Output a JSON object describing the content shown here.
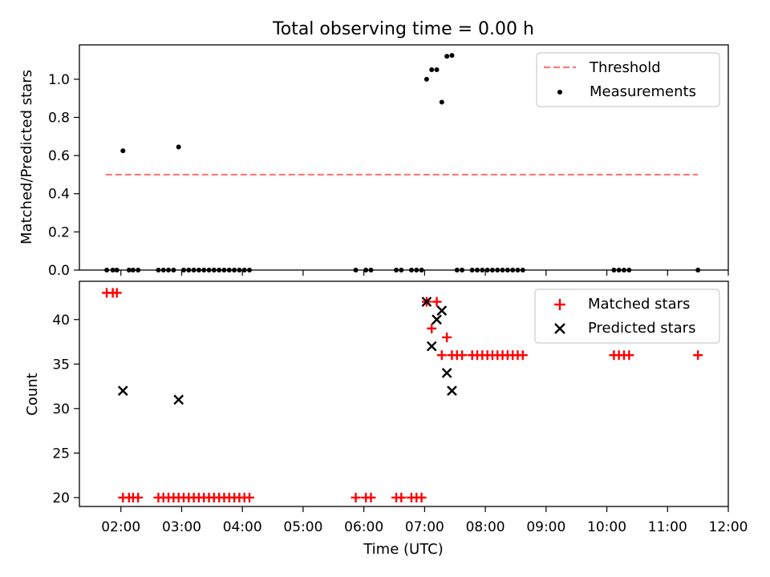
{
  "chart_data": [
    {
      "type": "scatter",
      "title": "Total observing time = 0.00 h",
      "xlabel": "",
      "ylabel": "Matched/Predicted stars",
      "xlim": [
        "01:19",
        "12:00"
      ],
      "ylim": [
        0,
        1.18
      ],
      "yticks": [
        "0.0",
        "0.2",
        "0.4",
        "0.6",
        "0.8",
        "1.0"
      ],
      "legend_position": "top-right",
      "grid": false,
      "threshold": {
        "name": "Threshold",
        "value": 0.5,
        "x_start": "01:45",
        "x_end": "11:30",
        "color": "#ff7777"
      },
      "measurements": {
        "name": "Measurements",
        "color": "#000000",
        "points": [
          {
            "x": "01:46",
            "y": 0.0
          },
          {
            "x": "01:52",
            "y": 0.0
          },
          {
            "x": "01:56",
            "y": 0.0
          },
          {
            "x": "02:02",
            "y": 0.625
          },
          {
            "x": "02:08",
            "y": 0.0
          },
          {
            "x": "02:12",
            "y": 0.0
          },
          {
            "x": "02:17",
            "y": 0.0
          },
          {
            "x": "02:37",
            "y": 0.0
          },
          {
            "x": "02:42",
            "y": 0.0
          },
          {
            "x": "02:47",
            "y": 0.0
          },
          {
            "x": "02:52",
            "y": 0.0
          },
          {
            "x": "02:57",
            "y": 0.645
          },
          {
            "x": "03:02",
            "y": 0.0
          },
          {
            "x": "03:07",
            "y": 0.0
          },
          {
            "x": "03:12",
            "y": 0.0
          },
          {
            "x": "03:17",
            "y": 0.0
          },
          {
            "x": "03:22",
            "y": 0.0
          },
          {
            "x": "03:27",
            "y": 0.0
          },
          {
            "x": "03:32",
            "y": 0.0
          },
          {
            "x": "03:37",
            "y": 0.0
          },
          {
            "x": "03:42",
            "y": 0.0
          },
          {
            "x": "03:47",
            "y": 0.0
          },
          {
            "x": "03:52",
            "y": 0.0
          },
          {
            "x": "03:57",
            "y": 0.0
          },
          {
            "x": "04:02",
            "y": 0.0
          },
          {
            "x": "04:07",
            "y": 0.0
          },
          {
            "x": "05:52",
            "y": 0.0
          },
          {
            "x": "06:02",
            "y": 0.0
          },
          {
            "x": "06:07",
            "y": 0.0
          },
          {
            "x": "06:32",
            "y": 0.0
          },
          {
            "x": "06:37",
            "y": 0.0
          },
          {
            "x": "06:47",
            "y": 0.0
          },
          {
            "x": "06:52",
            "y": 0.0
          },
          {
            "x": "06:57",
            "y": 0.0
          },
          {
            "x": "07:02",
            "y": 1.0
          },
          {
            "x": "07:07",
            "y": 1.05
          },
          {
            "x": "07:12",
            "y": 1.05
          },
          {
            "x": "07:17",
            "y": 0.88
          },
          {
            "x": "07:22",
            "y": 1.12
          },
          {
            "x": "07:27",
            "y": 1.125
          },
          {
            "x": "07:32",
            "y": 0.0
          },
          {
            "x": "07:37",
            "y": 0.0
          },
          {
            "x": "07:47",
            "y": 0.0
          },
          {
            "x": "07:52",
            "y": 0.0
          },
          {
            "x": "07:57",
            "y": 0.0
          },
          {
            "x": "08:02",
            "y": 0.0
          },
          {
            "x": "08:07",
            "y": 0.0
          },
          {
            "x": "08:12",
            "y": 0.0
          },
          {
            "x": "08:17",
            "y": 0.0
          },
          {
            "x": "08:22",
            "y": 0.0
          },
          {
            "x": "08:27",
            "y": 0.0
          },
          {
            "x": "08:32",
            "y": 0.0
          },
          {
            "x": "08:37",
            "y": 0.0
          },
          {
            "x": "10:07",
            "y": 0.0
          },
          {
            "x": "10:12",
            "y": 0.0
          },
          {
            "x": "10:17",
            "y": 0.0
          },
          {
            "x": "10:22",
            "y": 0.0
          },
          {
            "x": "11:30",
            "y": 0.0
          }
        ]
      }
    },
    {
      "type": "scatter",
      "title": "",
      "xlabel": "Time (UTC)",
      "ylabel": "Count",
      "xlim": [
        "01:19",
        "12:00"
      ],
      "ylim": [
        19,
        44.3
      ],
      "yticks": [
        "20",
        "25",
        "30",
        "35",
        "40"
      ],
      "xticks": [
        "02:00",
        "03:00",
        "04:00",
        "05:00",
        "06:00",
        "07:00",
        "08:00",
        "09:00",
        "10:00",
        "11:00",
        "12:00"
      ],
      "legend_position": "top-right",
      "grid": false,
      "series": [
        {
          "name": "Matched stars",
          "marker": "+",
          "color": "#ff0000",
          "points": [
            {
              "x": "01:46",
              "y": 43
            },
            {
              "x": "01:52",
              "y": 43
            },
            {
              "x": "01:56",
              "y": 43
            },
            {
              "x": "02:02",
              "y": 20
            },
            {
              "x": "02:08",
              "y": 20
            },
            {
              "x": "02:12",
              "y": 20
            },
            {
              "x": "02:17",
              "y": 20
            },
            {
              "x": "02:37",
              "y": 20
            },
            {
              "x": "02:42",
              "y": 20
            },
            {
              "x": "02:47",
              "y": 20
            },
            {
              "x": "02:52",
              "y": 20
            },
            {
              "x": "02:57",
              "y": 20
            },
            {
              "x": "03:02",
              "y": 20
            },
            {
              "x": "03:07",
              "y": 20
            },
            {
              "x": "03:12",
              "y": 20
            },
            {
              "x": "03:17",
              "y": 20
            },
            {
              "x": "03:22",
              "y": 20
            },
            {
              "x": "03:27",
              "y": 20
            },
            {
              "x": "03:32",
              "y": 20
            },
            {
              "x": "03:37",
              "y": 20
            },
            {
              "x": "03:42",
              "y": 20
            },
            {
              "x": "03:47",
              "y": 20
            },
            {
              "x": "03:52",
              "y": 20
            },
            {
              "x": "03:57",
              "y": 20
            },
            {
              "x": "04:02",
              "y": 20
            },
            {
              "x": "04:07",
              "y": 20
            },
            {
              "x": "05:52",
              "y": 20
            },
            {
              "x": "06:02",
              "y": 20
            },
            {
              "x": "06:07",
              "y": 20
            },
            {
              "x": "06:32",
              "y": 20
            },
            {
              "x": "06:37",
              "y": 20
            },
            {
              "x": "06:47",
              "y": 20
            },
            {
              "x": "06:52",
              "y": 20
            },
            {
              "x": "06:57",
              "y": 20
            },
            {
              "x": "07:02",
              "y": 42
            },
            {
              "x": "07:07",
              "y": 39
            },
            {
              "x": "07:12",
              "y": 42
            },
            {
              "x": "07:17",
              "y": 36
            },
            {
              "x": "07:22",
              "y": 38
            },
            {
              "x": "07:27",
              "y": 36
            },
            {
              "x": "07:32",
              "y": 36
            },
            {
              "x": "07:37",
              "y": 36
            },
            {
              "x": "07:47",
              "y": 36
            },
            {
              "x": "07:52",
              "y": 36
            },
            {
              "x": "07:57",
              "y": 36
            },
            {
              "x": "08:02",
              "y": 36
            },
            {
              "x": "08:07",
              "y": 36
            },
            {
              "x": "08:12",
              "y": 36
            },
            {
              "x": "08:17",
              "y": 36
            },
            {
              "x": "08:22",
              "y": 36
            },
            {
              "x": "08:27",
              "y": 36
            },
            {
              "x": "08:32",
              "y": 36
            },
            {
              "x": "08:37",
              "y": 36
            },
            {
              "x": "10:07",
              "y": 36
            },
            {
              "x": "10:12",
              "y": 36
            },
            {
              "x": "10:17",
              "y": 36
            },
            {
              "x": "10:22",
              "y": 36
            },
            {
              "x": "11:30",
              "y": 36
            }
          ]
        },
        {
          "name": "Predicted stars",
          "marker": "x",
          "color": "#000000",
          "points": [
            {
              "x": "02:02",
              "y": 32
            },
            {
              "x": "02:57",
              "y": 31
            },
            {
              "x": "07:02",
              "y": 42
            },
            {
              "x": "07:07",
              "y": 37
            },
            {
              "x": "07:12",
              "y": 40
            },
            {
              "x": "07:17",
              "y": 41
            },
            {
              "x": "07:22",
              "y": 34
            },
            {
              "x": "07:27",
              "y": 32
            }
          ]
        }
      ]
    }
  ]
}
